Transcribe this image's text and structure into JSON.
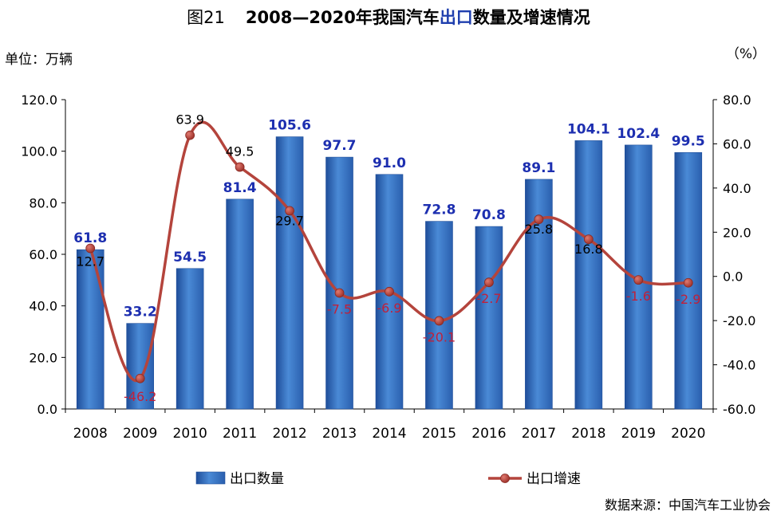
{
  "title": {
    "fig_no": "图21",
    "part1": "2008—2020年我国汽车",
    "part_blue": "出口",
    "part2": "数量及增速情况"
  },
  "unit_left": "单位：万辆",
  "unit_right": "（%）",
  "source": "数据来源：中国汽车工业协会",
  "colors": {
    "bar": "#3a78c8",
    "bar_dark": "#1f4e9a",
    "line": "#b4443c",
    "bar_label": "#1d2fb0",
    "line_label_pos": "#000000",
    "line_label_neg": "#c0203a"
  },
  "chart_data": {
    "type": "bar",
    "categories": [
      "2008",
      "2009",
      "2010",
      "2011",
      "2012",
      "2013",
      "2014",
      "2015",
      "2016",
      "2017",
      "2018",
      "2019",
      "2020"
    ],
    "series": [
      {
        "name": "出口数量",
        "type": "bar",
        "axis": "left",
        "values": [
          61.8,
          33.2,
          54.5,
          81.4,
          105.6,
          97.7,
          91.0,
          72.8,
          70.8,
          89.1,
          104.1,
          102.4,
          99.5
        ],
        "labels": [
          "61.8",
          "33.2",
          "54.5",
          "81.4",
          "105.6",
          "97.7",
          "91.0",
          "72.8",
          "70.8",
          "89.1",
          "104.1",
          "102.4",
          "99.5"
        ]
      },
      {
        "name": "出口增速",
        "type": "line",
        "axis": "right",
        "values": [
          12.7,
          -46.2,
          63.9,
          49.5,
          29.7,
          -7.5,
          -6.9,
          -20.1,
          -2.7,
          25.8,
          16.8,
          -1.6,
          -2.9
        ],
        "labels": [
          "12.7",
          "-46.2",
          "63.9",
          "49.5",
          "29.7",
          "-7.5",
          "-6.9",
          "-20.1",
          "-2.7",
          "25.8",
          "16.8",
          "-1.6",
          "-2.9"
        ]
      }
    ],
    "y_left": {
      "lim": [
        0,
        120
      ],
      "ticks": [
        "0.0",
        "20.0",
        "40.0",
        "60.0",
        "80.0",
        "100.0",
        "120.0"
      ]
    },
    "y_right": {
      "lim": [
        -60,
        80
      ],
      "ticks": [
        "-60.0",
        "-40.0",
        "-20.0",
        "0.0",
        "20.0",
        "40.0",
        "60.0",
        "80.0"
      ]
    },
    "legend_position": "bottom",
    "grid": false
  }
}
